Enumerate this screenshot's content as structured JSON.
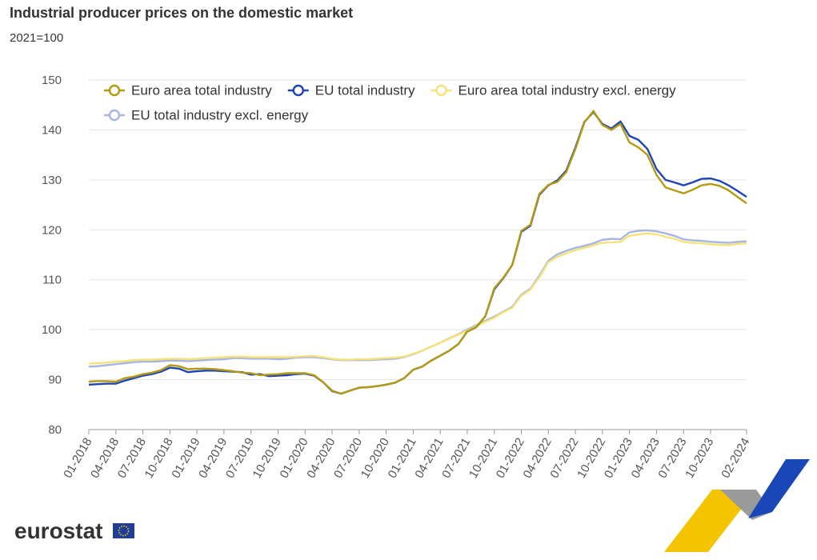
{
  "chart_data": {
    "type": "line",
    "title": "Industrial producer prices on the domestic market",
    "subtitle": "2021=100",
    "source": "eurostat",
    "categories": [
      "01-2018",
      null,
      null,
      "04-2018",
      null,
      null,
      "07-2018",
      null,
      null,
      "10-2018",
      null,
      null,
      "01-2019",
      null,
      null,
      "04-2019",
      null,
      null,
      "07-2019",
      null,
      null,
      "10-2019",
      null,
      null,
      "01-2020",
      null,
      null,
      "04-2020",
      null,
      null,
      "07-2020",
      null,
      null,
      "10-2020",
      null,
      null,
      "01-2021",
      null,
      null,
      "04-2021",
      null,
      null,
      "07-2021",
      null,
      null,
      "10-2021",
      null,
      null,
      "01-2022",
      null,
      null,
      "04-2022",
      null,
      null,
      "07-2022",
      null,
      null,
      "10-2022",
      null,
      null,
      "01-2023",
      null,
      null,
      "04-2023",
      null,
      null,
      "07-2023",
      null,
      null,
      "10-2023",
      null,
      null,
      null,
      "02-2024"
    ],
    "ylim": [
      80,
      150
    ],
    "yticks": [
      80,
      90,
      100,
      110,
      120,
      130,
      140,
      150
    ],
    "grid": true,
    "series": [
      {
        "name": "Euro area total industry",
        "color": "#b39a12",
        "values": [
          89.6,
          89.7,
          89.7,
          89.6,
          90.3,
          90.6,
          91.1,
          91.4,
          91.9,
          92.9,
          92.7,
          92.1,
          92.2,
          92.2,
          92.1,
          91.9,
          91.7,
          91.4,
          91.3,
          90.9,
          91.0,
          91.1,
          91.3,
          91.3,
          91.3,
          90.9,
          89.5,
          87.8,
          87.2,
          87.8,
          88.4,
          88.5,
          88.7,
          89.0,
          89.4,
          90.3,
          92.0,
          92.6,
          93.8,
          94.8,
          95.8,
          97.1,
          99.6,
          100.5,
          102.7,
          108.3,
          110.4,
          113.0,
          119.8,
          121.0,
          127.2,
          129.0,
          129.6,
          131.6,
          136.2,
          141.5,
          143.8,
          141.0,
          140.0,
          141.2,
          137.5,
          136.5,
          135.0,
          131.0,
          128.5,
          127.9,
          127.3,
          128.0,
          128.9,
          129.2,
          128.8,
          127.9,
          126.6,
          125.3
        ]
      },
      {
        "name": "EU total industry",
        "color": "#1f45b4",
        "values": [
          89.0,
          89.1,
          89.2,
          89.2,
          89.8,
          90.3,
          90.8,
          91.1,
          91.6,
          92.4,
          92.2,
          91.5,
          91.7,
          91.8,
          91.8,
          91.7,
          91.6,
          91.5,
          91.0,
          91.1,
          90.7,
          90.8,
          90.9,
          91.1,
          91.2,
          90.8,
          89.5,
          87.7,
          87.2,
          87.8,
          88.4,
          88.5,
          88.7,
          89.0,
          89.4,
          90.3,
          92.0,
          92.6,
          93.8,
          94.8,
          95.8,
          97.1,
          99.6,
          100.5,
          102.7,
          108.1,
          110.3,
          113.0,
          119.6,
          120.8,
          127.0,
          128.9,
          129.9,
          131.9,
          136.5,
          141.6,
          143.6,
          141.2,
          140.3,
          141.7,
          138.8,
          138.0,
          136.2,
          132.2,
          130.0,
          129.5,
          128.9,
          129.5,
          130.2,
          130.3,
          129.8,
          128.9,
          127.8,
          126.6
        ]
      },
      {
        "name": "Euro area total industry excl. energy",
        "color": "#f5e27a",
        "values": [
          93.2,
          93.3,
          93.4,
          93.6,
          93.7,
          93.9,
          94.0,
          94.0,
          94.1,
          94.2,
          94.2,
          94.1,
          94.2,
          94.3,
          94.4,
          94.5,
          94.6,
          94.6,
          94.5,
          94.5,
          94.5,
          94.5,
          94.5,
          94.6,
          94.7,
          94.7,
          94.5,
          94.2,
          94.0,
          94.0,
          94.1,
          94.1,
          94.2,
          94.3,
          94.4,
          94.6,
          95.2,
          95.8,
          96.6,
          97.4,
          98.2,
          99.0,
          99.8,
          100.7,
          101.6,
          102.4,
          103.5,
          104.4,
          106.8,
          108.0,
          110.5,
          113.5,
          114.6,
          115.3,
          115.9,
          116.4,
          116.9,
          117.4,
          117.5,
          117.6,
          118.8,
          119.1,
          119.3,
          119.1,
          118.6,
          118.2,
          117.6,
          117.4,
          117.3,
          117.1,
          117.0,
          116.9,
          117.2,
          117.3
        ]
      },
      {
        "name": "EU total industry excl. energy",
        "color": "#a7b6e0",
        "values": [
          92.6,
          92.7,
          92.9,
          93.1,
          93.3,
          93.5,
          93.6,
          93.6,
          93.7,
          93.8,
          93.8,
          93.7,
          93.8,
          93.9,
          94.0,
          94.1,
          94.3,
          94.3,
          94.2,
          94.2,
          94.2,
          94.1,
          94.2,
          94.4,
          94.5,
          94.5,
          94.3,
          94.1,
          93.9,
          93.9,
          93.9,
          93.9,
          94.0,
          94.1,
          94.2,
          94.5,
          95.1,
          95.8,
          96.6,
          97.4,
          98.3,
          99.1,
          100.0,
          100.9,
          101.8,
          102.6,
          103.6,
          104.6,
          107.0,
          108.2,
          110.8,
          113.8,
          115.1,
          115.8,
          116.4,
          116.8,
          117.3,
          118.0,
          118.2,
          118.1,
          119.5,
          119.8,
          119.9,
          119.7,
          119.3,
          118.8,
          118.1,
          117.9,
          117.8,
          117.6,
          117.5,
          117.4,
          117.6,
          117.7
        ]
      }
    ]
  }
}
